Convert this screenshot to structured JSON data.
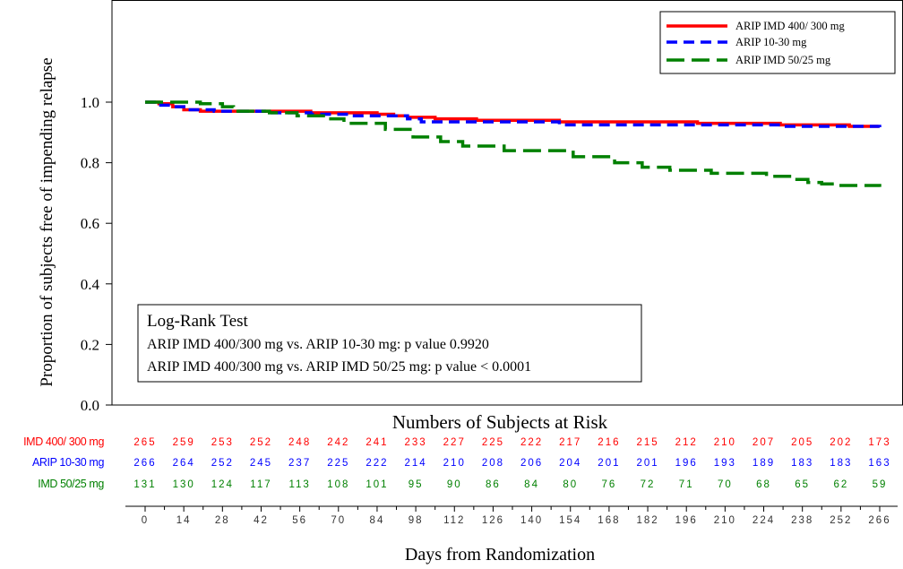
{
  "chart_data": {
    "type": "line",
    "ylabel": "Proportion of subjects free of impending relapse",
    "xlabel": "Days from Randomization",
    "ylim": [
      0.0,
      1.0
    ],
    "y_ticks": [
      "0.0",
      "0.2",
      "0.4",
      "0.6",
      "0.8",
      "1.0"
    ],
    "x_ticks": [
      "0",
      "14",
      "28",
      "42",
      "56",
      "70",
      "84",
      "98",
      "112",
      "126",
      "140",
      "154",
      "168",
      "182",
      "196",
      "210",
      "224",
      "238",
      "252",
      "266"
    ],
    "step": true,
    "series": [
      {
        "name": "ARIP IMD 400/ 300 mg",
        "color": "#ff0000",
        "dash": "solid",
        "x": [
          0,
          5,
          10,
          14,
          20,
          40,
          60,
          84,
          90,
          95,
          105,
          120,
          150,
          200,
          230,
          255,
          265
        ],
        "y": [
          1.0,
          0.995,
          0.985,
          0.975,
          0.97,
          0.97,
          0.965,
          0.96,
          0.955,
          0.95,
          0.945,
          0.94,
          0.935,
          0.93,
          0.925,
          0.92,
          0.915
        ]
      },
      {
        "name": "ARIP 10-30 mg",
        "color": "#0000ff",
        "dash": "dashed",
        "x": [
          0,
          5,
          10,
          15,
          25,
          45,
          60,
          75,
          95,
          100,
          150,
          200,
          230,
          266
        ],
        "y": [
          1.0,
          0.99,
          0.985,
          0.975,
          0.97,
          0.965,
          0.96,
          0.955,
          0.945,
          0.935,
          0.925,
          0.925,
          0.92,
          0.915
        ]
      },
      {
        "name": "ARIP IMD 50/25 mg",
        "color": "#008000",
        "dash": "long-dashed",
        "x": [
          0,
          20,
          28,
          32,
          45,
          55,
          66,
          72,
          87,
          97,
          107,
          115,
          130,
          155,
          170,
          180,
          190,
          205,
          225,
          235,
          240,
          245,
          250,
          266
        ],
        "y": [
          1.0,
          0.995,
          0.985,
          0.97,
          0.965,
          0.955,
          0.945,
          0.93,
          0.91,
          0.885,
          0.87,
          0.855,
          0.84,
          0.82,
          0.8,
          0.785,
          0.775,
          0.765,
          0.755,
          0.745,
          0.735,
          0.73,
          0.725,
          0.72
        ]
      }
    ],
    "legend": {
      "position": "top-right",
      "entries": [
        "ARIP IMD 400/ 300 mg",
        "ARIP 10-30 mg",
        "ARIP IMD 50/25 mg"
      ]
    },
    "annotation": {
      "title": "Log-Rank Test",
      "line1": "ARIP IMD 400/300 mg vs. ARIP 10-30 mg: p value 0.9920",
      "line2": "ARIP IMD 400/300 mg vs. ARIP IMD 50/25 mg: p value < 0.0001"
    },
    "risk_table": {
      "title": "Numbers of Subjects at Risk",
      "x": [
        0,
        14,
        28,
        42,
        56,
        70,
        84,
        98,
        112,
        126,
        140,
        154,
        168,
        182,
        196,
        210,
        224,
        238,
        252,
        266
      ],
      "rows": [
        {
          "label": "IMD 400/ 300 mg",
          "color": "#ff0000",
          "values": [
            "265",
            "259",
            "253",
            "252",
            "248",
            "242",
            "241",
            "233",
            "227",
            "225",
            "222",
            "217",
            "216",
            "215",
            "212",
            "210",
            "207",
            "205",
            "202",
            "173"
          ]
        },
        {
          "label": "ARIP 10-30 mg",
          "color": "#0000ff",
          "values": [
            "266",
            "264",
            "252",
            "245",
            "237",
            "225",
            "222",
            "214",
            "210",
            "208",
            "206",
            "204",
            "201",
            "201",
            "196",
            "193",
            "189",
            "183",
            "183",
            "163"
          ]
        },
        {
          "label": "IMD 50/25 mg",
          "color": "#008000",
          "values": [
            "131",
            "130",
            "124",
            "117",
            "113",
            "108",
            "101",
            "95",
            "90",
            "86",
            "84",
            "80",
            "76",
            "72",
            "71",
            "70",
            "68",
            "65",
            "62",
            "59"
          ]
        }
      ]
    }
  }
}
